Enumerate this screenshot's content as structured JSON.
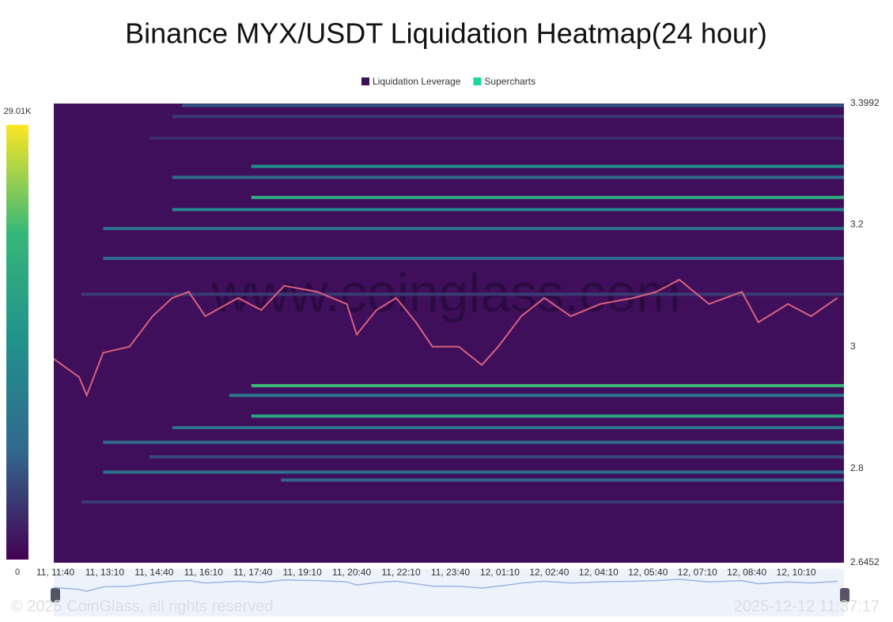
{
  "chart_data": {
    "type": "heatmap",
    "title": "Binance MYX/USDT Liquidation Heatmap(24 hour)",
    "legend": [
      {
        "name": "Liquidation Leverage",
        "color": "#3f0f5c"
      },
      {
        "name": "Supercharts",
        "color": "#1fd69a"
      }
    ],
    "xlim": [
      0,
      24
    ],
    "xticks": [
      {
        "value": 0,
        "label": "11, 11:40"
      },
      {
        "value": 1.5,
        "label": "11, 13:10"
      },
      {
        "value": 3,
        "label": "11, 14:40"
      },
      {
        "value": 4.5,
        "label": "11, 16:10"
      },
      {
        "value": 6,
        "label": "11, 17:40"
      },
      {
        "value": 7.5,
        "label": "11, 19:10"
      },
      {
        "value": 9,
        "label": "11, 20:40"
      },
      {
        "value": 10.5,
        "label": "11, 22:10"
      },
      {
        "value": 12,
        "label": "11, 23:40"
      },
      {
        "value": 13.5,
        "label": "12, 01:10"
      },
      {
        "value": 15,
        "label": "12, 02:40"
      },
      {
        "value": 16.5,
        "label": "12, 04:10"
      },
      {
        "value": 18,
        "label": "12, 05:40"
      },
      {
        "value": 19.5,
        "label": "12, 07:10"
      },
      {
        "value": 21,
        "label": "12, 08:40"
      },
      {
        "value": 22.5,
        "label": "12, 10:10"
      }
    ],
    "ylim": [
      2.6452,
      3.3992
    ],
    "yticks": [
      2.6452,
      2.8,
      3,
      3.2,
      3.3992
    ],
    "colorbar": {
      "colors": [
        "#440154",
        "#31688e",
        "#21918c",
        "#35b779",
        "#fde725"
      ],
      "ticks": [
        0,
        {
          "value": 29010,
          "label": "29.01K"
        }
      ]
    },
    "bands": [
      {
        "price": 3.396,
        "start": 3.9,
        "value": 6000
      },
      {
        "price": 3.378,
        "start": 3.6,
        "value": 4000
      },
      {
        "price": 3.342,
        "start": 2.9,
        "value": 3000
      },
      {
        "price": 3.296,
        "start": 6.0,
        "value": 14000
      },
      {
        "price": 3.278,
        "start": 3.6,
        "value": 8000
      },
      {
        "price": 3.245,
        "start": 6.0,
        "value": 20000
      },
      {
        "price": 3.225,
        "start": 3.6,
        "value": 12000
      },
      {
        "price": 3.194,
        "start": 1.5,
        "value": 9000
      },
      {
        "price": 3.145,
        "start": 1.5,
        "value": 8000
      },
      {
        "price": 3.086,
        "start": 0.84,
        "value": 4000
      },
      {
        "price": 2.936,
        "start": 6.0,
        "value": 22000
      },
      {
        "price": 2.92,
        "start": 5.33,
        "value": 10000
      },
      {
        "price": 2.886,
        "start": 6.0,
        "value": 18000
      },
      {
        "price": 2.867,
        "start": 3.6,
        "value": 9000
      },
      {
        "price": 2.843,
        "start": 1.5,
        "value": 8000
      },
      {
        "price": 2.819,
        "start": 2.9,
        "value": 5000
      },
      {
        "price": 2.794,
        "start": 1.5,
        "value": 9000
      },
      {
        "price": 2.781,
        "start": 6.9,
        "value": 7000
      },
      {
        "price": 2.745,
        "start": 0.84,
        "value": 4000
      }
    ],
    "price": {
      "color": "#d9607e",
      "x": [
        0,
        0.77,
        1.0,
        1.5,
        2.3,
        3.0,
        3.6,
        4.1,
        4.6,
        5.6,
        6.3,
        7.0,
        8.0,
        8.9,
        9.2,
        9.8,
        10.4,
        11.0,
        11.5,
        12.3,
        13.0,
        13.5,
        14.2,
        14.9,
        15.7,
        16.6,
        17.6,
        18.3,
        19.0,
        19.9,
        20.9,
        21.4,
        22.3,
        23.0,
        23.8
      ],
      "values": [
        2.98,
        2.95,
        2.92,
        2.99,
        3.0,
        3.05,
        3.08,
        3.09,
        3.05,
        3.08,
        3.06,
        3.1,
        3.09,
        3.07,
        3.02,
        3.06,
        3.08,
        3.04,
        3.0,
        3.0,
        2.97,
        3.0,
        3.05,
        3.08,
        3.05,
        3.07,
        3.08,
        3.09,
        3.11,
        3.07,
        3.09,
        3.04,
        3.07,
        3.05,
        3.08
      ]
    },
    "watermark": "www.coinglass.com",
    "copyright": "© 2025 CoinGlass, all rights reserved",
    "timestamp": "2025-12-12 11:37:17"
  }
}
